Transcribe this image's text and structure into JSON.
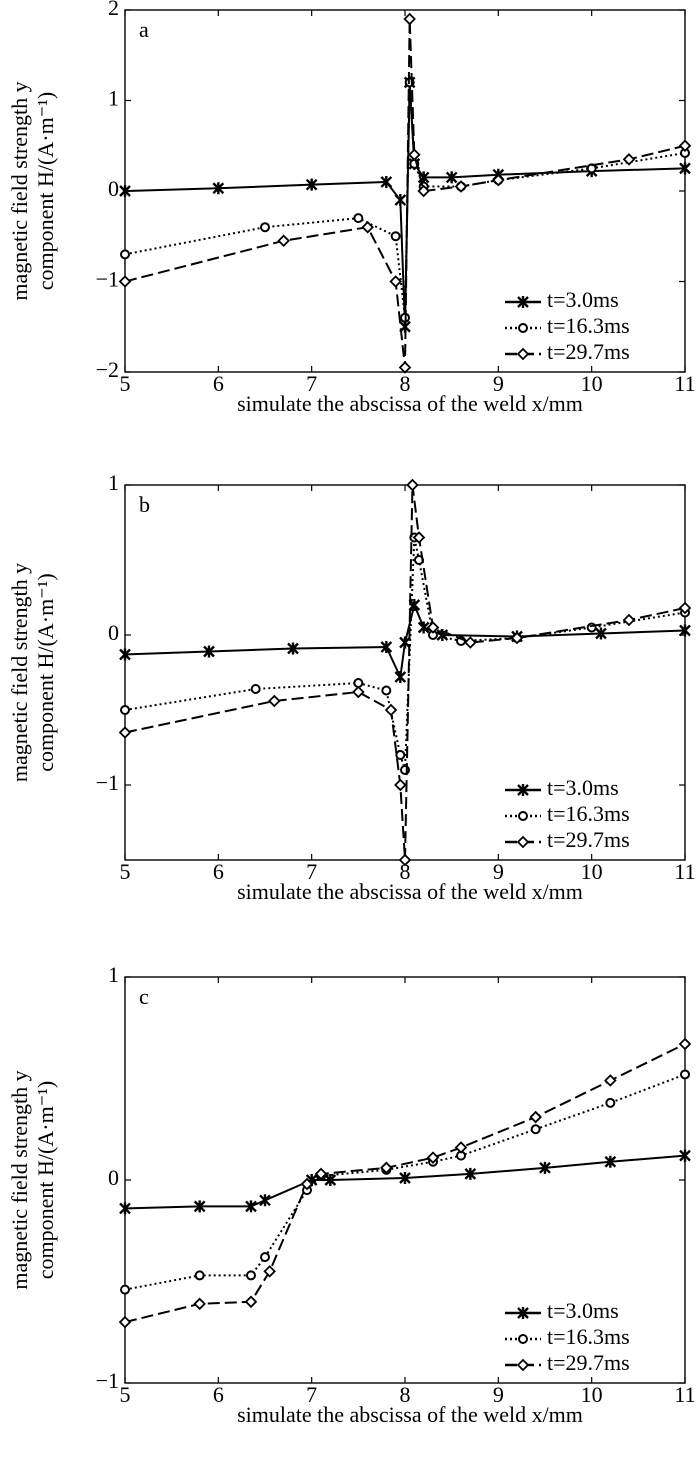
{
  "chart_data": [
    {
      "type": "line",
      "panel_label": "a",
      "ylabel": [
        "magnetic field strength y",
        "component H/(A·m⁻¹)"
      ],
      "xlabel": "simulate the abscissa of the weld x/mm",
      "xlim": [
        5,
        11
      ],
      "xticks": [
        5,
        6,
        7,
        8,
        9,
        10,
        11
      ],
      "ylim": [
        -2,
        2
      ],
      "yticks": [
        {
          "value": -2,
          "label": "−2"
        },
        {
          "value": -1,
          "label": "−1"
        },
        0,
        1,
        2
      ],
      "legend": "lower right",
      "series": [
        {
          "name": "t=3.0ms",
          "color": "#000000",
          "linestyle": "solid",
          "marker": "x",
          "x": [
            5,
            6,
            7,
            7.8,
            7.95,
            8.0,
            8.05,
            8.1,
            8.2,
            8.5,
            9,
            10,
            11
          ],
          "values": [
            0,
            0.03,
            0.07,
            0.1,
            -0.1,
            -1.5,
            1.2,
            0.3,
            0.15,
            0.15,
            0.18,
            0.22,
            0.25
          ]
        },
        {
          "name": "t=16.3ms",
          "color": "#000000",
          "linestyle": "dotted",
          "marker": "o",
          "x": [
            5,
            6.5,
            7.5,
            7.9,
            8.0,
            8.05,
            8.1,
            8.2,
            8.6,
            9,
            10,
            11
          ],
          "values": [
            -0.7,
            -0.4,
            -0.3,
            -0.5,
            -1.4,
            1.2,
            0.3,
            0.05,
            0.05,
            0.12,
            0.25,
            0.42
          ]
        },
        {
          "name": "t=29.7ms",
          "color": "#000000",
          "linestyle": "dashed",
          "marker": "d",
          "x": [
            5,
            6.7,
            7.6,
            7.9,
            8.0,
            8.05,
            8.1,
            8.2,
            8.6,
            9,
            10.4,
            11
          ],
          "values": [
            -1,
            -0.55,
            -0.4,
            -1.0,
            -1.95,
            1.9,
            0.4,
            0.0,
            0.05,
            0.12,
            0.35,
            0.5
          ]
        }
      ]
    },
    {
      "type": "line",
      "panel_label": "b",
      "ylabel": [
        "magnetic field strength y",
        "component H/(A·m⁻¹)"
      ],
      "xlabel": "simulate the abscissa of the weld x/mm",
      "xlim": [
        5,
        11
      ],
      "xticks": [
        5,
        6,
        7,
        8,
        9,
        10,
        11
      ],
      "ylim": [
        -1.5,
        1
      ],
      "yticks": [
        {
          "value": -1,
          "label": "−1"
        },
        0,
        1
      ],
      "legend": "lower right",
      "series": [
        {
          "name": "t=3.0ms",
          "color": "#000000",
          "linestyle": "solid",
          "marker": "x",
          "x": [
            5,
            5.9,
            6.8,
            7.8,
            7.95,
            8.0,
            8.1,
            8.2,
            8.4,
            9.2,
            10.1,
            11
          ],
          "values": [
            -0.13,
            -0.11,
            -0.09,
            -0.08,
            -0.28,
            -0.05,
            0.2,
            0.05,
            0.0,
            -0.01,
            0.01,
            0.03
          ]
        },
        {
          "name": "t=16.3ms",
          "color": "#000000",
          "linestyle": "dotted",
          "marker": "o",
          "x": [
            5,
            6.4,
            7.5,
            7.8,
            7.95,
            8.0,
            8.1,
            8.15,
            8.3,
            8.6,
            9.2,
            10,
            11
          ],
          "values": [
            -0.5,
            -0.36,
            -0.32,
            -0.37,
            -0.8,
            -0.9,
            0.65,
            0.5,
            0.0,
            -0.04,
            -0.02,
            0.05,
            0.15
          ]
        },
        {
          "name": "t=29.7ms",
          "color": "#000000",
          "linestyle": "dashed",
          "marker": "d",
          "x": [
            5,
            6.6,
            7.5,
            7.85,
            7.95,
            8.0,
            8.08,
            8.15,
            8.3,
            8.7,
            9.2,
            10.4,
            11
          ],
          "values": [
            -0.65,
            -0.44,
            -0.38,
            -0.5,
            -1.0,
            -1.5,
            1.0,
            0.65,
            0.05,
            -0.05,
            -0.02,
            0.1,
            0.18
          ]
        }
      ]
    },
    {
      "type": "line",
      "panel_label": "c",
      "ylabel": [
        "magnetic field strength y",
        "component H/(A·m⁻¹)"
      ],
      "xlabel": "simulate the abscissa of the weld x/mm",
      "xlim": [
        5,
        11
      ],
      "xticks": [
        5,
        6,
        7,
        8,
        9,
        10,
        11
      ],
      "ylim": [
        -1,
        1
      ],
      "yticks": [
        {
          "value": -1,
          "label": "−1"
        },
        0,
        1
      ],
      "legend": "lower right",
      "series": [
        {
          "name": "t=3.0ms",
          "color": "#000000",
          "linestyle": "solid",
          "marker": "x",
          "x": [
            5,
            5.8,
            6.35,
            6.5,
            7,
            7.2,
            8,
            8.7,
            9.5,
            10.2,
            11
          ],
          "values": [
            -0.14,
            -0.13,
            -0.13,
            -0.1,
            0.0,
            0.0,
            0.01,
            0.03,
            0.06,
            0.09,
            0.12
          ]
        },
        {
          "name": "t=16.3ms",
          "color": "#000000",
          "linestyle": "dotted",
          "marker": "o",
          "x": [
            5,
            5.8,
            6.35,
            6.5,
            6.95,
            7.1,
            7.8,
            8.3,
            8.6,
            9.4,
            10.2,
            11
          ],
          "values": [
            -0.54,
            -0.47,
            -0.47,
            -0.38,
            -0.05,
            0.02,
            0.05,
            0.09,
            0.12,
            0.25,
            0.38,
            0.52
          ]
        },
        {
          "name": "t=29.7ms",
          "color": "#000000",
          "linestyle": "dashed",
          "marker": "d",
          "x": [
            5,
            5.8,
            6.35,
            6.55,
            6.95,
            7.1,
            7.8,
            8.3,
            8.6,
            9.4,
            10.2,
            11
          ],
          "values": [
            -0.7,
            -0.61,
            -0.6,
            -0.45,
            -0.02,
            0.03,
            0.06,
            0.11,
            0.16,
            0.31,
            0.49,
            0.67
          ]
        }
      ]
    }
  ]
}
